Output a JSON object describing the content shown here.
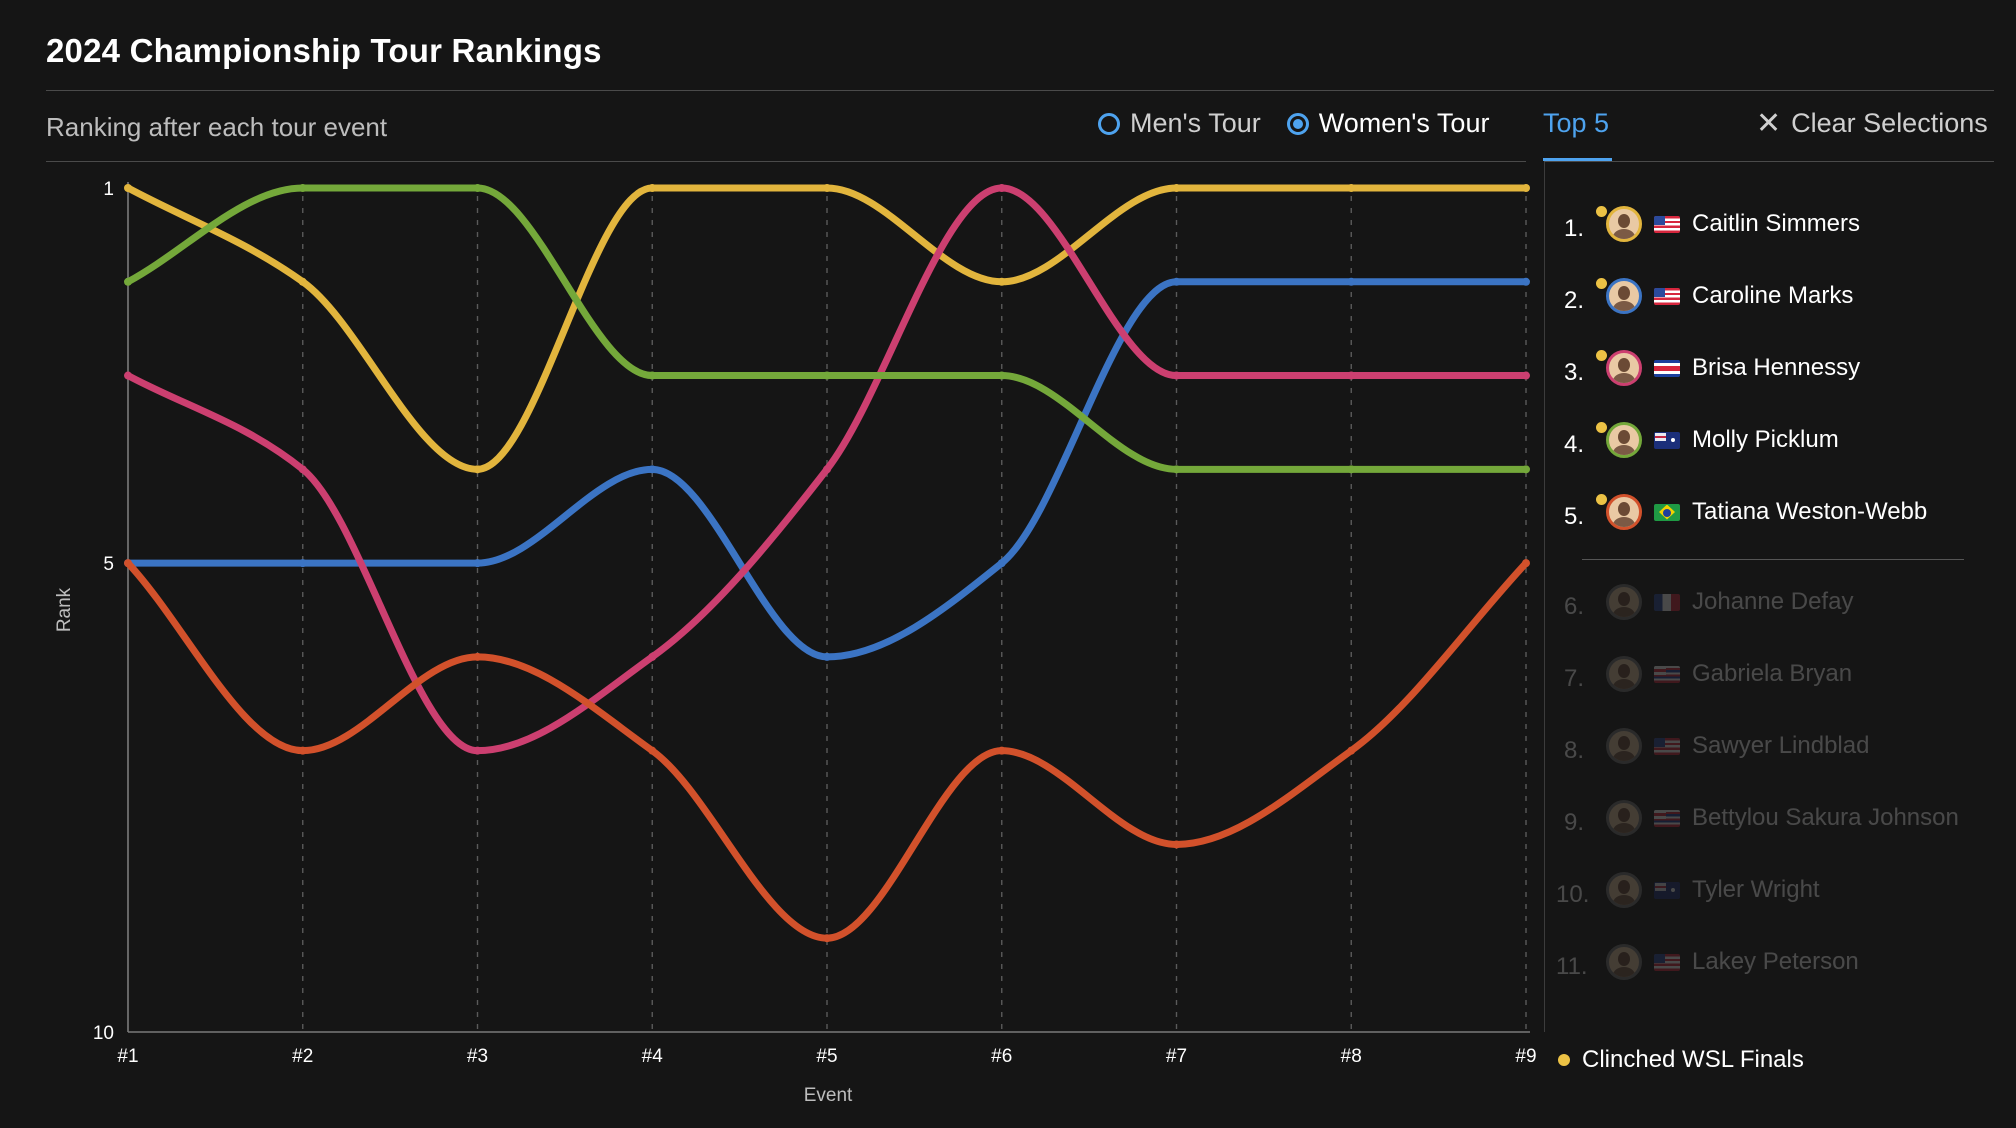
{
  "title": "2024 Championship Tour Rankings",
  "subtitle": "Ranking after each tour event",
  "controls": {
    "tour_options": [
      {
        "label": "Men's Tour",
        "selected": false
      },
      {
        "label": "Women's Tour",
        "selected": true
      }
    ],
    "tab_top5": "Top 5",
    "clear_label": "Clear Selections"
  },
  "legend": {
    "top": [
      {
        "rank": "1.",
        "name": "Caitlin Simmers",
        "flag": "us",
        "color": "#e2b53d",
        "clinched": true
      },
      {
        "rank": "2.",
        "name": "Caroline Marks",
        "flag": "us",
        "color": "#3b74c4",
        "clinched": true
      },
      {
        "rank": "3.",
        "name": "Brisa Hennessy",
        "flag": "cr",
        "color": "#cc3f70",
        "clinched": true
      },
      {
        "rank": "4.",
        "name": "Molly Picklum",
        "flag": "au",
        "color": "#74a83a",
        "clinched": true
      },
      {
        "rank": "5.",
        "name": "Tatiana Weston-Webb",
        "flag": "br",
        "color": "#d2512b",
        "clinched": true
      }
    ],
    "rest": [
      {
        "rank": "6.",
        "name": "Johanne Defay",
        "flag": "fr"
      },
      {
        "rank": "7.",
        "name": "Gabriela Bryan",
        "flag": "hi"
      },
      {
        "rank": "8.",
        "name": "Sawyer Lindblad",
        "flag": "us"
      },
      {
        "rank": "9.",
        "name": "Bettylou Sakura Johnson",
        "flag": "hi"
      },
      {
        "rank": "10.",
        "name": "Tyler Wright",
        "flag": "au"
      },
      {
        "rank": "11.",
        "name": "Lakey Peterson",
        "flag": "us"
      }
    ],
    "footer_label": "Clinched WSL Finals",
    "clinch_color": "#ecc245"
  },
  "chart_data": {
    "type": "line",
    "xlabel": "Event",
    "ylabel": "Rank",
    "x": [
      "#1",
      "#2",
      "#3",
      "#4",
      "#5",
      "#6",
      "#7",
      "#8",
      "#9"
    ],
    "ylim": [
      1,
      10
    ],
    "y_ticks": [
      "1",
      "5",
      "10"
    ],
    "y_inverted": true,
    "grid": "vertical dashed",
    "series": [
      {
        "name": "Caitlin Simmers",
        "color": "#e2b53d",
        "values": [
          1,
          2,
          4,
          1,
          1,
          2,
          1,
          1,
          1
        ]
      },
      {
        "name": "Caroline Marks",
        "color": "#3b74c4",
        "values": [
          5,
          5,
          5,
          4,
          6,
          5,
          2,
          2,
          2
        ]
      },
      {
        "name": "Brisa Hennessy",
        "color": "#cc3f70",
        "values": [
          3,
          4,
          7,
          6,
          4,
          1,
          3,
          3,
          3
        ]
      },
      {
        "name": "Molly Picklum",
        "color": "#74a83a",
        "values": [
          2,
          1,
          1,
          3,
          3,
          3,
          4,
          4,
          4
        ]
      },
      {
        "name": "Tatiana Weston-Webb",
        "color": "#d2512b",
        "values": [
          5,
          7,
          6,
          7,
          9,
          7,
          8,
          7,
          5
        ]
      }
    ]
  }
}
